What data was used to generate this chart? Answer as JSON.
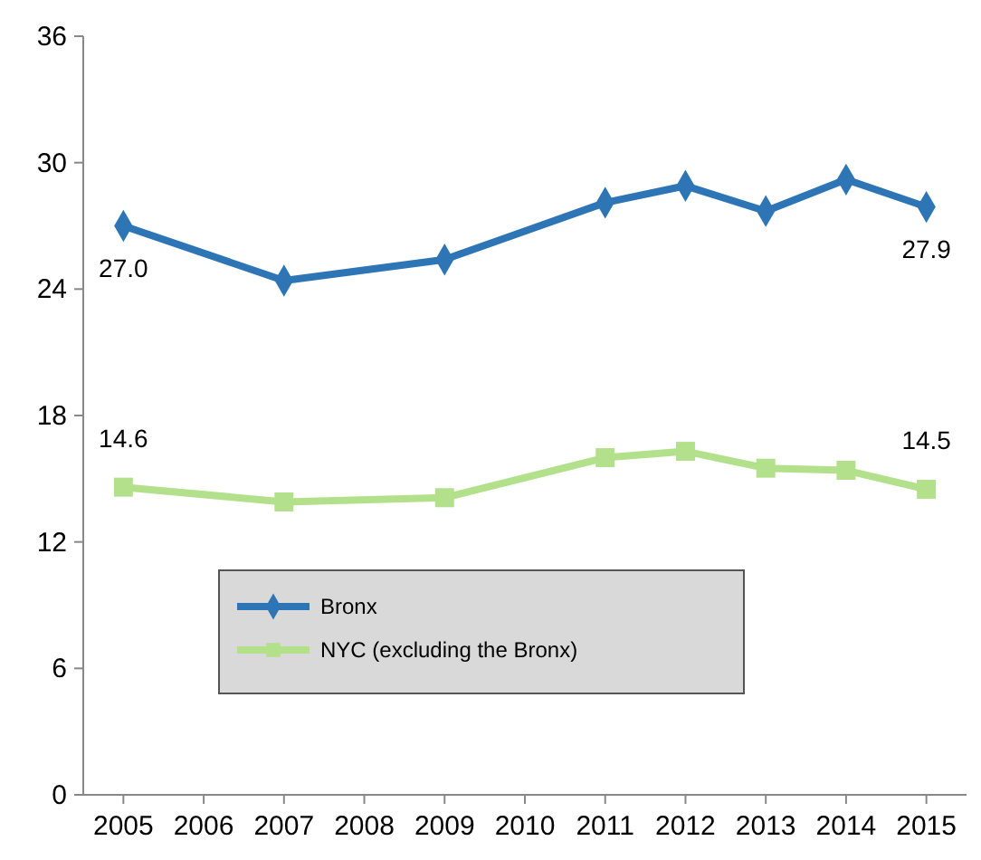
{
  "chart_data": {
    "type": "line",
    "x": [
      2005,
      2007,
      2009,
      2011,
      2012,
      2013,
      2014,
      2015
    ],
    "xlim": [
      2004.5,
      2015.5
    ],
    "xticks": [
      2005,
      2006,
      2007,
      2008,
      2009,
      2010,
      2011,
      2012,
      2013,
      2014,
      2015
    ],
    "ylim": [
      0,
      36
    ],
    "yticks": [
      0,
      6,
      12,
      18,
      24,
      30,
      36
    ],
    "legend": "bottom",
    "series": [
      {
        "name": "Bronx",
        "color": "#2e75b6",
        "marker": "diamond",
        "values": [
          27.0,
          24.4,
          25.4,
          28.1,
          28.9,
          27.7,
          29.2,
          27.9
        ],
        "value_labels": [
          "27.0",
          null,
          null,
          null,
          null,
          null,
          null,
          "27.9"
        ]
      },
      {
        "name": "NYC (excluding the Bronx)",
        "color": "#b3e08a",
        "marker": "square",
        "values": [
          14.6,
          13.9,
          14.1,
          16.0,
          16.3,
          15.5,
          15.4,
          14.5
        ],
        "value_labels": [
          "14.6",
          null,
          null,
          null,
          null,
          null,
          null,
          "14.5"
        ]
      }
    ]
  }
}
